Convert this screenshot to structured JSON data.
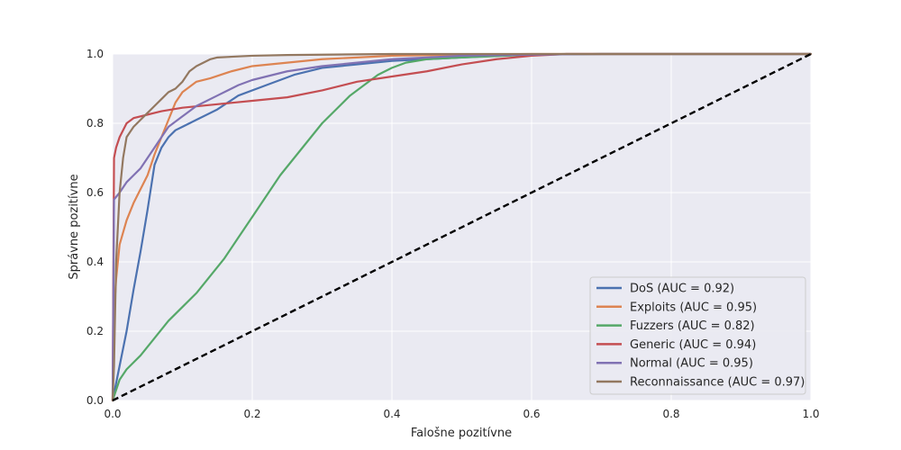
{
  "chart_data": {
    "type": "line",
    "title": "",
    "xlabel": "Falošne pozitívne",
    "ylabel": "Správne pozitívne",
    "xlim": [
      0.0,
      1.0
    ],
    "ylim": [
      0.0,
      1.0
    ],
    "xticks": [
      "0.0",
      "0.2",
      "0.4",
      "0.6",
      "0.8",
      "1.0"
    ],
    "yticks": [
      "0.0",
      "0.2",
      "0.4",
      "0.6",
      "0.8",
      "1.0"
    ],
    "grid": true,
    "legend_position": "lower-right",
    "series": [
      {
        "name": "DoS (AUC = 0.92)",
        "color": "#4c72b0",
        "x": [
          0,
          0.005,
          0.01,
          0.02,
          0.03,
          0.04,
          0.05,
          0.06,
          0.07,
          0.08,
          0.09,
          0.1,
          0.12,
          0.15,
          0.18,
          0.22,
          0.26,
          0.3,
          0.35,
          0.4,
          0.45,
          0.5,
          0.55,
          0.6,
          0.65,
          0.7,
          1.0
        ],
        "y": [
          0,
          0.05,
          0.1,
          0.2,
          0.32,
          0.43,
          0.55,
          0.68,
          0.73,
          0.76,
          0.78,
          0.79,
          0.81,
          0.84,
          0.88,
          0.91,
          0.94,
          0.96,
          0.97,
          0.98,
          0.985,
          0.99,
          0.995,
          0.998,
          1.0,
          1.0,
          1.0
        ]
      },
      {
        "name": "Exploits (AUC = 0.95)",
        "color": "#dd8452",
        "x": [
          0,
          0.002,
          0.005,
          0.01,
          0.02,
          0.03,
          0.04,
          0.05,
          0.06,
          0.07,
          0.08,
          0.09,
          0.1,
          0.12,
          0.14,
          0.17,
          0.2,
          0.25,
          0.3,
          0.35,
          0.4,
          0.5,
          0.6,
          0.7,
          1.0
        ],
        "y": [
          0,
          0.25,
          0.35,
          0.45,
          0.52,
          0.57,
          0.61,
          0.65,
          0.71,
          0.76,
          0.81,
          0.86,
          0.89,
          0.92,
          0.93,
          0.95,
          0.965,
          0.975,
          0.985,
          0.99,
          0.995,
          0.998,
          1.0,
          1.0,
          1.0
        ]
      },
      {
        "name": "Fuzzers (AUC = 0.82)",
        "color": "#55a868",
        "x": [
          0,
          0.01,
          0.02,
          0.04,
          0.06,
          0.08,
          0.1,
          0.12,
          0.14,
          0.16,
          0.18,
          0.2,
          0.22,
          0.24,
          0.26,
          0.28,
          0.3,
          0.32,
          0.34,
          0.36,
          0.38,
          0.4,
          0.42,
          0.45,
          0.5,
          0.6,
          0.7,
          1.0
        ],
        "y": [
          0,
          0.06,
          0.09,
          0.13,
          0.18,
          0.23,
          0.27,
          0.31,
          0.36,
          0.41,
          0.47,
          0.53,
          0.59,
          0.65,
          0.7,
          0.75,
          0.8,
          0.84,
          0.88,
          0.91,
          0.94,
          0.96,
          0.975,
          0.985,
          0.99,
          0.998,
          1.0,
          1.0
        ]
      },
      {
        "name": "Generic (AUC = 0.94)",
        "color": "#c44e52",
        "x": [
          0,
          0.002,
          0.005,
          0.01,
          0.02,
          0.03,
          0.05,
          0.07,
          0.1,
          0.15,
          0.2,
          0.25,
          0.3,
          0.35,
          0.4,
          0.45,
          0.5,
          0.55,
          0.6,
          0.65,
          0.7,
          0.8,
          0.9,
          1.0
        ],
        "y": [
          0,
          0.7,
          0.73,
          0.76,
          0.8,
          0.815,
          0.825,
          0.835,
          0.845,
          0.855,
          0.865,
          0.875,
          0.895,
          0.92,
          0.935,
          0.95,
          0.97,
          0.985,
          0.995,
          1.0,
          1.0,
          1.0,
          1.0,
          1.0
        ]
      },
      {
        "name": "Normal (AUC = 0.95)",
        "color": "#8172b3",
        "x": [
          0,
          0.002,
          0.01,
          0.02,
          0.03,
          0.04,
          0.05,
          0.06,
          0.07,
          0.08,
          0.1,
          0.12,
          0.15,
          0.18,
          0.2,
          0.25,
          0.3,
          0.35,
          0.4,
          0.45,
          0.5,
          0.6,
          0.7,
          1.0
        ],
        "y": [
          0,
          0.58,
          0.6,
          0.63,
          0.65,
          0.67,
          0.7,
          0.73,
          0.76,
          0.79,
          0.82,
          0.85,
          0.88,
          0.91,
          0.925,
          0.95,
          0.965,
          0.975,
          0.985,
          0.99,
          0.995,
          0.998,
          1.0,
          1.0
        ]
      },
      {
        "name": "Reconnaissance (AUC = 0.97)",
        "color": "#937860",
        "x": [
          0,
          0.002,
          0.005,
          0.01,
          0.015,
          0.02,
          0.03,
          0.04,
          0.05,
          0.06,
          0.07,
          0.08,
          0.09,
          0.1,
          0.11,
          0.12,
          0.13,
          0.14,
          0.15,
          0.17,
          0.2,
          0.25,
          0.3,
          0.4,
          0.5,
          0.7,
          1.0
        ],
        "y": [
          0,
          0.1,
          0.4,
          0.6,
          0.7,
          0.76,
          0.79,
          0.81,
          0.83,
          0.85,
          0.87,
          0.89,
          0.9,
          0.92,
          0.95,
          0.965,
          0.975,
          0.985,
          0.99,
          0.992,
          0.995,
          0.997,
          0.998,
          1.0,
          1.0,
          1.0,
          1.0
        ]
      }
    ],
    "reference_line": {
      "x": [
        0,
        1
      ],
      "y": [
        0,
        1
      ],
      "color": "#000000",
      "style": "dashed"
    }
  }
}
